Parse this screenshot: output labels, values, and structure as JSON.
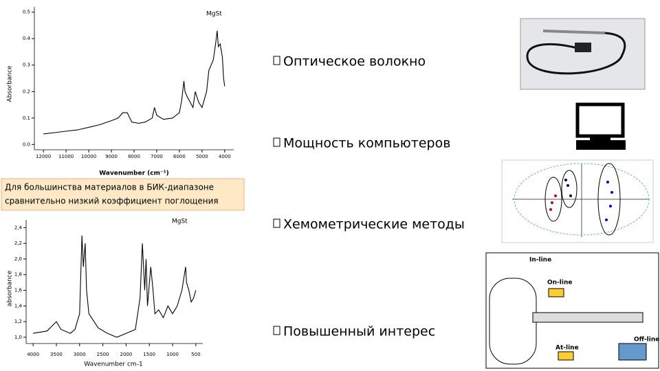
{
  "chart_data": [
    {
      "type": "line",
      "title": "MgSt",
      "ylabel": "Absorbance",
      "xlabel": "Wavenumber (cm⁻¹)",
      "x": [
        12000,
        11500,
        11000,
        10500,
        10000,
        9500,
        9000,
        8700,
        8500,
        8300,
        8100,
        7800,
        7500,
        7200,
        7100,
        7000,
        6700,
        6300,
        6000,
        5900,
        5800,
        5750,
        5650,
        5400,
        5300,
        5150,
        5000,
        4800,
        4700,
        4500,
        4400,
        4330,
        4280,
        4200,
        4100,
        4050,
        4000
      ],
      "series": [
        {
          "color": "#000000",
          "values": [
            0.04,
            0.045,
            0.05,
            0.055,
            0.065,
            0.075,
            0.09,
            0.1,
            0.12,
            0.12,
            0.085,
            0.08,
            0.085,
            0.1,
            0.14,
            0.11,
            0.095,
            0.1,
            0.12,
            0.165,
            0.24,
            0.2,
            0.18,
            0.14,
            0.2,
            0.16,
            0.14,
            0.2,
            0.28,
            0.32,
            0.38,
            0.43,
            0.37,
            0.38,
            0.33,
            0.25,
            0.22
          ]
        }
      ],
      "xlim": [
        12400,
        3600
      ],
      "ylim": [
        -0.02,
        0.52
      ],
      "xticks": [
        12000,
        11000,
        10000,
        9000,
        8000,
        7000,
        6000,
        5000,
        4000
      ],
      "yticks": [
        {
          "value": 0,
          "label": "0.0"
        },
        0.1,
        0.2,
        0.3,
        0.4,
        0.5
      ]
    },
    {
      "type": "line",
      "title": "MgSt",
      "ylabel": "absorbance",
      "xlabel": "Wavenumber cm-1",
      "x": [
        4000,
        3700,
        3500,
        3400,
        3200,
        3100,
        3000,
        2950,
        2920,
        2880,
        2850,
        2800,
        2600,
        2400,
        2200,
        2000,
        1800,
        1700,
        1650,
        1600,
        1570,
        1540,
        1470,
        1420,
        1380,
        1300,
        1200,
        1100,
        1000,
        900,
        800,
        720,
        700,
        650,
        600,
        550,
        500
      ],
      "series": [
        {
          "color": "#000000",
          "values": [
            1.05,
            1.08,
            1.2,
            1.1,
            1.05,
            1.1,
            1.3,
            2.3,
            1.9,
            2.2,
            1.6,
            1.3,
            1.12,
            1.05,
            1.0,
            1.05,
            1.1,
            1.5,
            2.2,
            1.6,
            2.0,
            1.4,
            1.9,
            1.6,
            1.3,
            1.35,
            1.25,
            1.4,
            1.3,
            1.4,
            1.6,
            1.9,
            1.7,
            1.6,
            1.45,
            1.5,
            1.6
          ]
        }
      ],
      "xlim": [
        4150,
        350
      ],
      "ylim": [
        0.92,
        2.5
      ],
      "xticks": [
        4000,
        3500,
        3000,
        2500,
        2000,
        1500,
        1000,
        500
      ],
      "yticks": [
        {
          "value": 1.0,
          "label": "1,0"
        },
        {
          "value": 1.2,
          "label": "1,2"
        },
        {
          "value": 1.4,
          "label": "1,4"
        },
        {
          "value": 1.6,
          "label": "1,6"
        },
        {
          "value": 1.8,
          "label": "1,8"
        },
        {
          "value": 2.0,
          "label": "2,0"
        },
        {
          "value": 2.2,
          "label": "2,2"
        },
        {
          "value": 2.4,
          "label": "2,4"
        }
      ]
    }
  ],
  "callout": [
    "Для большинства материалов в БИК-диапазоне",
    "сравнительно низкий коэффициент поглощения"
  ],
  "bullets": [
    "Оптическое волокно",
    "Мощность компьютеров",
    "Хемометрические методы",
    "Повышенный интерес"
  ],
  "diagram": {
    "labels": [
      "In-line",
      "On-line",
      "At-line",
      "Off-line"
    ]
  }
}
